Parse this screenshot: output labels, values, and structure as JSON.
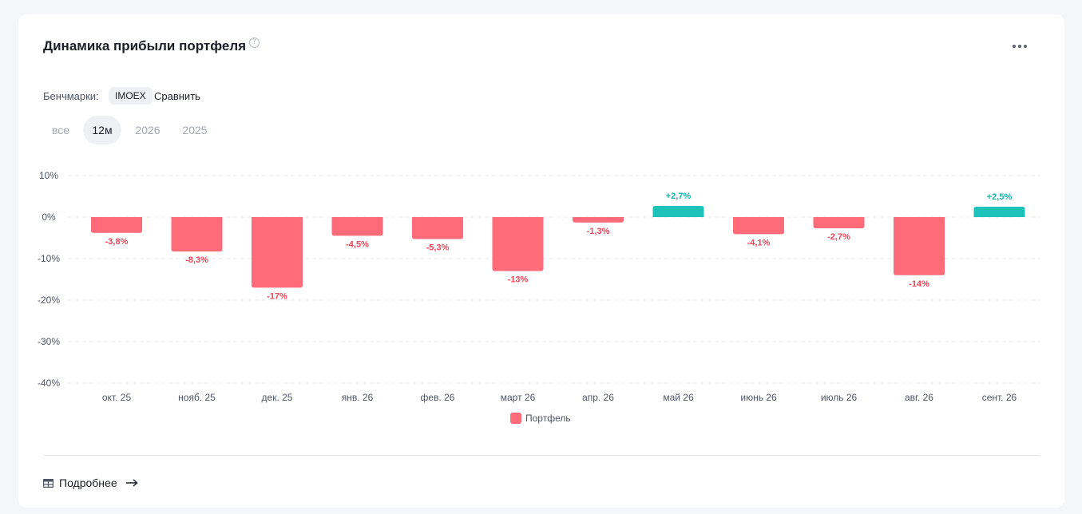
{
  "header": {
    "title": "Динамика прибыли портфеля",
    "help_icon": "question-circle-icon",
    "more_icon": "more-horizontal-icon"
  },
  "benchmarks": {
    "label": "Бенчмарки:",
    "chip": "IMOEX",
    "compare_label": "Сравнить"
  },
  "periods": [
    {
      "label": "все",
      "active": false
    },
    {
      "label": "12м",
      "active": true
    },
    {
      "label": "2026",
      "active": false
    },
    {
      "label": "2025",
      "active": false
    }
  ],
  "colors": {
    "negative": "#ff6b78",
    "positive": "#1ec2b8",
    "negative_label": "#f0475a",
    "positive_label": "#16b3a9"
  },
  "chart_data": {
    "type": "bar",
    "categories": [
      "окт. 25",
      "нояб. 25",
      "дек. 25",
      "янв. 26",
      "фев. 26",
      "март 26",
      "апр. 26",
      "май 26",
      "июнь 26",
      "июль 26",
      "авг. 26",
      "сент. 26"
    ],
    "series": [
      {
        "name": "Портфель",
        "values": [
          -3.8,
          -8.3,
          -17,
          -4.5,
          -5.3,
          -13,
          -1.3,
          2.7,
          -4.1,
          -2.7,
          -14,
          2.5
        ],
        "labels": [
          "-3,8%",
          "-8,3%",
          "-17%",
          "-4,5%",
          "-5,3%",
          "-13%",
          "-1,3%",
          "+2,7%",
          "-4,1%",
          "-2,7%",
          "-14%",
          "+2,5%"
        ]
      }
    ],
    "ylim": [
      -40,
      10
    ],
    "yticks": [
      10,
      0,
      -10,
      -20,
      -30,
      -40
    ],
    "ytick_labels": [
      "10%",
      "0%",
      "-10%",
      "-20%",
      "-30%",
      "-40%"
    ],
    "grid": true,
    "legend": "bottom-center"
  },
  "footer": {
    "link_label": "Подробнее",
    "table_icon": "table-icon",
    "arrow_icon": "arrow-right-icon"
  }
}
